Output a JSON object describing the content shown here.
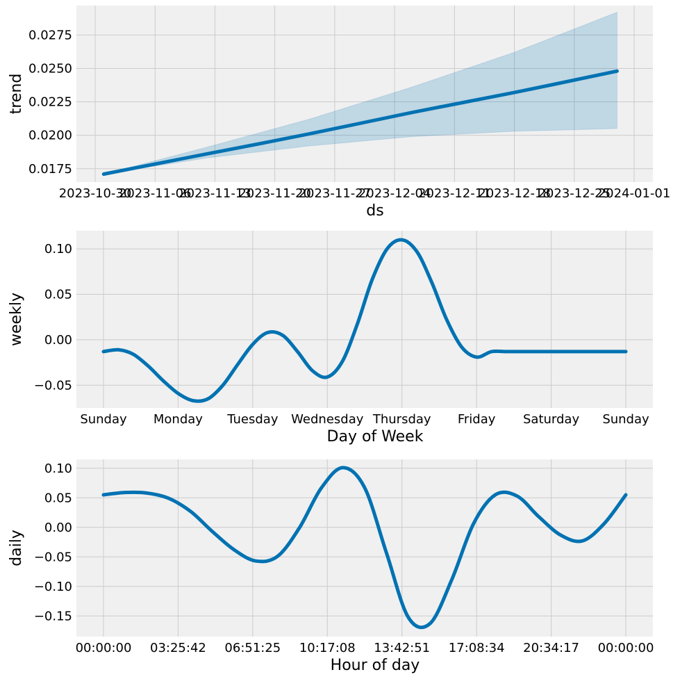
{
  "chart_data": [
    {
      "type": "line",
      "ylabel": "trend",
      "xlabel": "ds",
      "x_ticks": [
        "2023-10-30",
        "2023-11-06",
        "2023-11-13",
        "2023-11-20",
        "2023-11-27",
        "2023-12-04",
        "2023-12-11",
        "2023-12-18",
        "2023-12-25",
        "2024-01-01"
      ],
      "y_ticks": [
        "0.0175",
        "0.0200",
        "0.0225",
        "0.0250",
        "0.0275"
      ],
      "xlim": [
        "2023-10-29",
        "2024-01-01"
      ],
      "ylim": [
        0.0165,
        0.0297
      ],
      "grid": true,
      "series": [
        {
          "x": [
            "2023-10-31",
            "2023-11-12",
            "2023-11-24",
            "2023-12-06",
            "2023-12-18",
            "2023-12-30"
          ],
          "values": [
            0.0171,
            0.0186,
            0.0201,
            0.0217,
            0.0232,
            0.0248
          ],
          "band_lower": [
            0.0171,
            0.0183,
            0.0192,
            0.0199,
            0.0203,
            0.0205
          ],
          "band_upper": [
            0.0171,
            0.0191,
            0.0212,
            0.0236,
            0.0262,
            0.0292
          ]
        }
      ],
      "colors": {
        "line": "#0072B2",
        "band": "#0072B2"
      }
    },
    {
      "type": "line",
      "ylabel": "weekly",
      "xlabel": "Day of Week",
      "categories": [
        "Sunday",
        "Monday",
        "Tuesday",
        "Wednesday",
        "Thursday",
        "Friday",
        "Saturday",
        "Sunday"
      ],
      "y_ticks": [
        "0.10",
        "0.05",
        "0.00",
        "−0.05"
      ],
      "ylim": [
        -0.075,
        0.12
      ],
      "grid": true,
      "series": [
        {
          "x": [
            0,
            0.2,
            0.4,
            0.6,
            0.8,
            1.0,
            1.2,
            1.4,
            1.6,
            1.8,
            2.0,
            2.2,
            2.4,
            2.6,
            2.8,
            3.0,
            3.2,
            3.4,
            3.6,
            3.8,
            4.0,
            4.2,
            4.4,
            4.6,
            4.8,
            5.0,
            5.2,
            5.4,
            5.6,
            5.8,
            6.0,
            6.2,
            6.4,
            6.6,
            6.8,
            7.0
          ],
          "values": [
            -0.013,
            -0.011,
            -0.016,
            -0.029,
            -0.045,
            -0.059,
            -0.067,
            -0.065,
            -0.05,
            -0.027,
            -0.005,
            0.008,
            0.005,
            -0.013,
            -0.034,
            -0.041,
            -0.024,
            0.017,
            0.066,
            0.1,
            0.11,
            0.097,
            0.063,
            0.022,
            -0.008,
            -0.019,
            -0.013,
            -0.013,
            -0.013,
            -0.013,
            -0.013,
            -0.013,
            -0.013,
            -0.013,
            -0.013,
            -0.013
          ]
        }
      ],
      "colors": {
        "line": "#0072B2"
      }
    },
    {
      "type": "line",
      "ylabel": "daily",
      "xlabel": "Hour of day",
      "x_ticks": [
        "00:00:00",
        "03:25:42",
        "06:51:25",
        "10:17:08",
        "13:42:51",
        "17:08:34",
        "20:34:17",
        "00:00:00"
      ],
      "y_ticks": [
        "0.10",
        "0.05",
        "0.00",
        "−0.05",
        "−0.10",
        "−0.15"
      ],
      "ylim": [
        -0.185,
        0.115
      ],
      "grid": true,
      "series": [
        {
          "x": [
            0,
            1,
            2,
            3,
            4,
            5,
            6,
            7,
            8,
            9,
            10,
            11,
            12,
            13,
            14,
            15,
            16,
            17,
            18,
            19,
            20,
            21,
            22,
            23,
            24
          ],
          "values": [
            0.055,
            0.059,
            0.058,
            0.049,
            0.027,
            -0.007,
            -0.038,
            -0.057,
            -0.049,
            -0.001,
            0.066,
            0.101,
            0.067,
            -0.043,
            -0.152,
            -0.163,
            -0.089,
            0.006,
            0.055,
            0.053,
            0.018,
            -0.013,
            -0.023,
            0.006,
            0.055
          ]
        }
      ],
      "colors": {
        "line": "#0072B2"
      }
    }
  ]
}
